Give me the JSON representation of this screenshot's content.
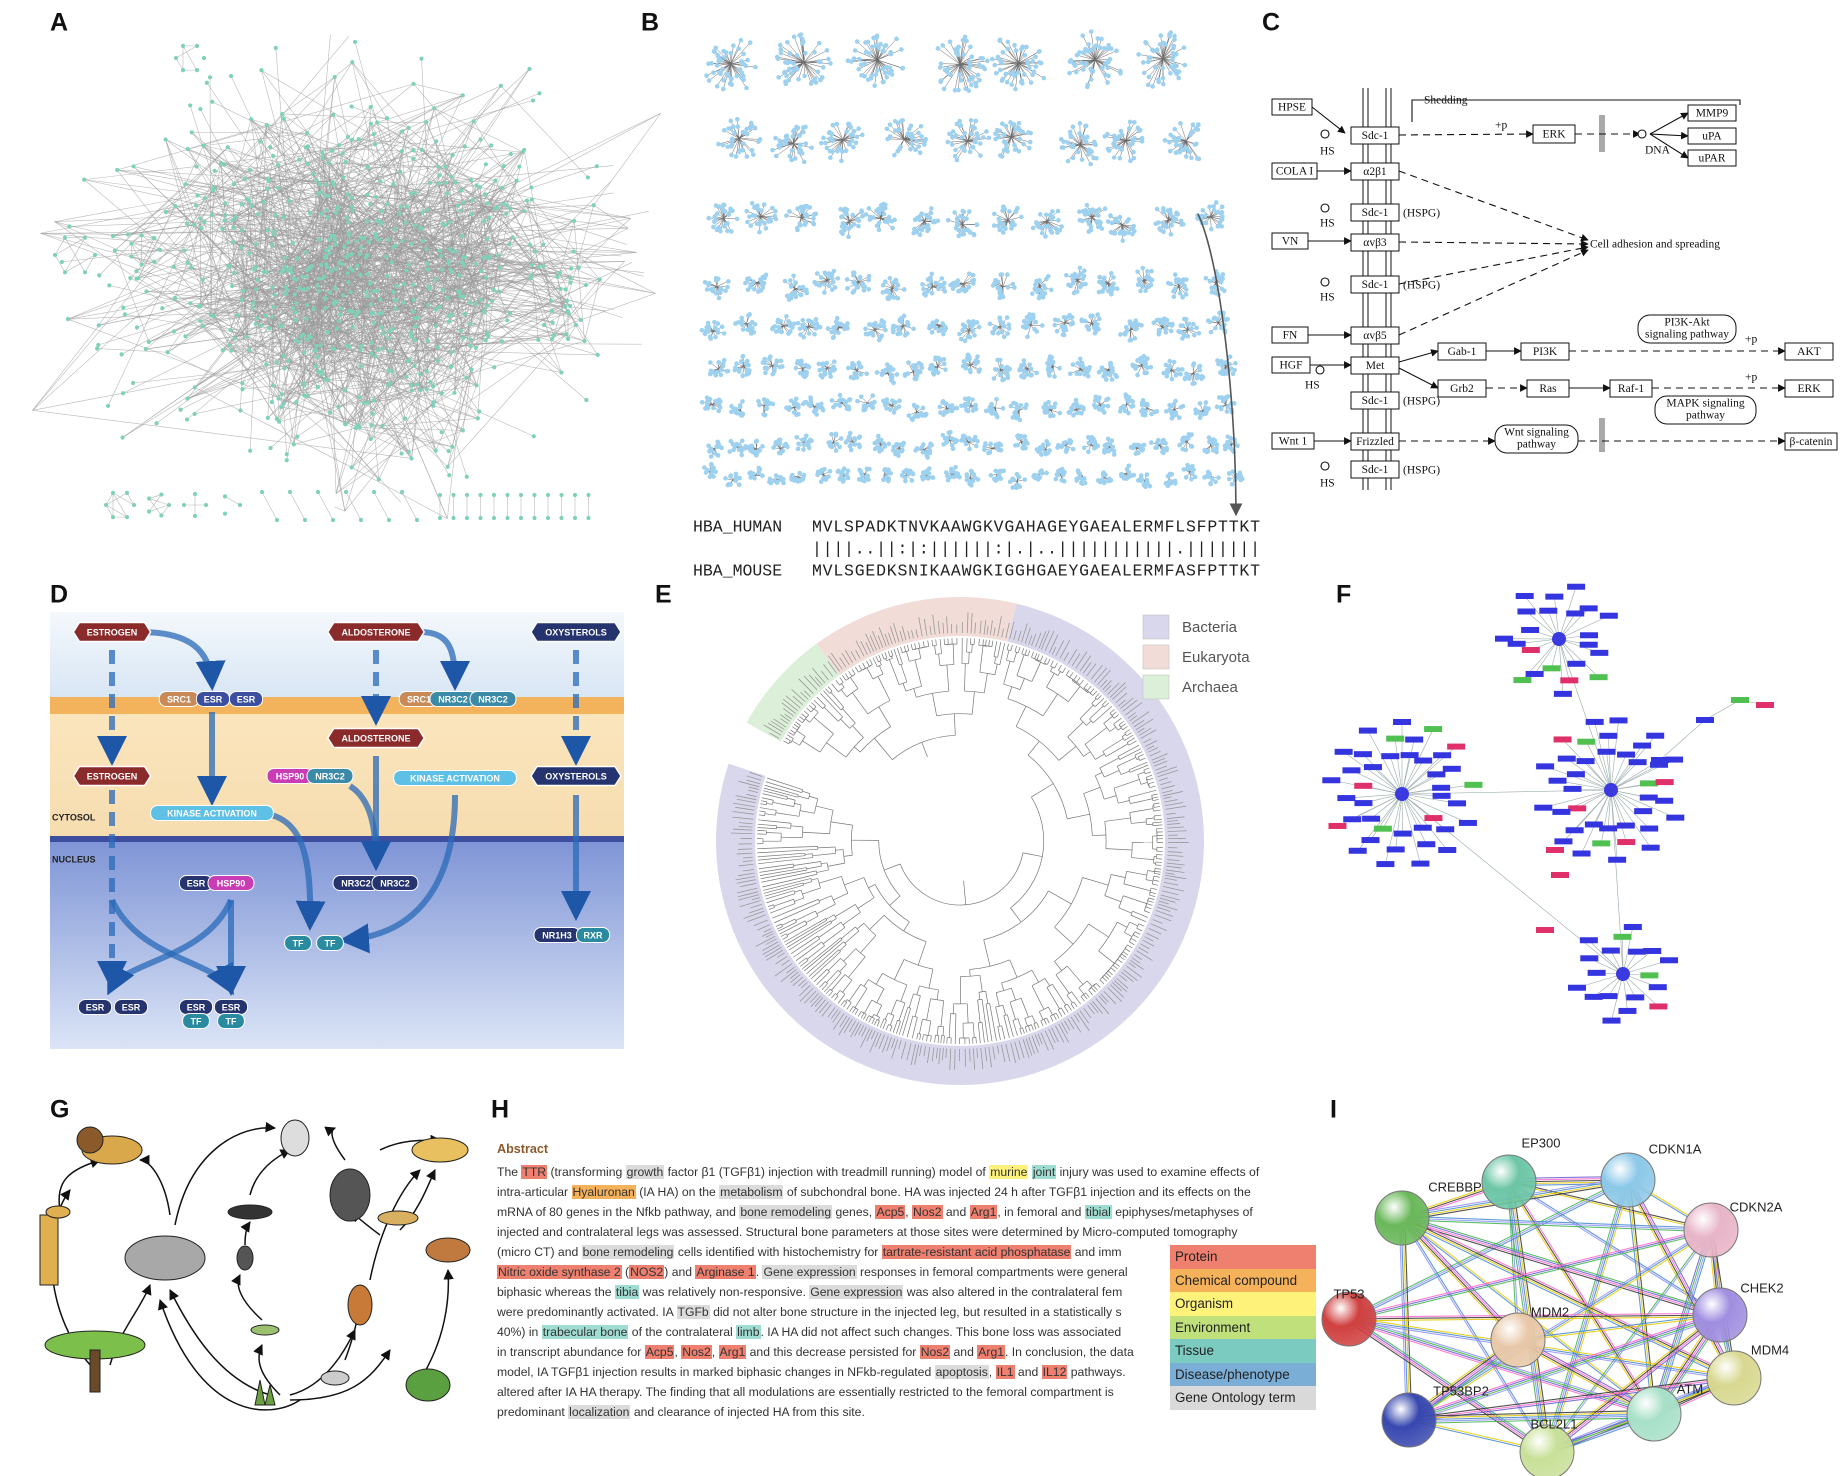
{
  "panel_labels": [
    "A",
    "B",
    "C",
    "D",
    "E",
    "F",
    "G",
    "H",
    "I"
  ],
  "alignment": {
    "name_1": "HBA_HUMAN",
    "sequence_1": "MVLSPADKTNVKAAWGKVGAHAGEYGAEALERMFLSFPTTKT",
    "match": "||||..||:|:||||||:|.|..|||||||||||.|||||||",
    "name_2": "HBA_MOUSE",
    "sequence_2": "MVLSGEDKSNIKAAWGKIGGHGAEYGAEALERMFASFPTTKT"
  },
  "pathway": {
    "boxes": [
      "HPSE",
      "Sdc-1",
      "MMP9",
      "uPA",
      "uPAR",
      "ERK",
      "COLA I",
      "α2β1",
      "Sdc-1",
      "VN",
      "αvβ3",
      "Sdc-1",
      "FN",
      "αvβ5",
      "HGF",
      "Met",
      "Gab-1",
      "PI3K",
      "AKT",
      "Sdc-1",
      "Grb2",
      "Ras",
      "Raf-1",
      "ERK",
      "Wnt 1",
      "Frizzled",
      "β-catenin",
      "Sdc-1"
    ],
    "pathways": [
      [
        "PI3K-Akt",
        "signaling pathway"
      ],
      [
        "MAPK signaling",
        "pathway"
      ],
      [
        "Wnt signaling",
        "pathway"
      ]
    ],
    "notes": [
      "Shedding",
      "+p",
      "DNA",
      "HS",
      "(HSPG)",
      "HS",
      "Cell adhesion and spreading",
      "(HSPG)",
      "HS",
      "+p",
      "+p",
      "HS",
      "(HSPG)",
      "(HSPG)",
      "HS"
    ]
  },
  "receptor_panel": {
    "labels": [
      "ESTROGEN",
      "SRC1",
      "ESR",
      "ESR",
      "ALDOSTERONE",
      "SRC1",
      "NR3C2",
      "NR3C2",
      "OXYSTEROLS",
      "ALDOSTERONE",
      "HSP90",
      "NR3C2",
      "KINASE ACTIVATION",
      "ESTROGEN",
      "OXYSTEROLS",
      "KINASE ACTIVATION",
      "ESR",
      "HSP90",
      "NR3C2",
      "NR3C2",
      "TF",
      "TF",
      "NR1H3",
      "RXR",
      "ESR",
      "ESR",
      "ESR",
      "ESR",
      "TF",
      "TF"
    ],
    "compartments": [
      "CYTOSOL",
      "NUCLEUS"
    ]
  },
  "tree_legend": [
    {
      "label": "Bacteria",
      "color": "#d9d7ec"
    },
    {
      "label": "Eukaryota",
      "color": "#f1dcd8"
    },
    {
      "label": "Archaea",
      "color": "#dcefd8"
    }
  ],
  "abstract": {
    "heading": "Abstract",
    "lines": [
      [
        "The ",
        {
          "text": "TTR",
          "color": "#ef8070"
        },
        " (transforming ",
        {
          "text": "growth",
          "color": "#dcdcdc"
        },
        " factor β1 (TGFβ1) injection with treadmill running) model of ",
        {
          "text": "murine",
          "color": "#fff27a"
        },
        " ",
        {
          "text": "joint",
          "color": "#9fdcd2"
        },
        " injury was used to examine effects of"
      ],
      [
        "intra-articular ",
        {
          "text": "Hyaluronan",
          "color": "#f5b25a"
        },
        " (IA HA) on the ",
        {
          "text": "metabolism",
          "color": "#dcdcdc"
        },
        " of subchondral bone. HA was injected 24 h after TGFβ1 injection and its effects on the"
      ],
      [
        "mRNA of 80 genes in the Nfkb pathway, and ",
        {
          "text": "bone remodeling",
          "color": "#dcdcdc"
        },
        " genes, ",
        {
          "text": "Acp5",
          "color": "#ef8070"
        },
        ", ",
        {
          "text": "Nos2",
          "color": "#ef8070"
        },
        " and ",
        {
          "text": "Arg1",
          "color": "#ef8070"
        },
        ", in femoral and ",
        {
          "text": "tibial",
          "color": "#9fdcd2"
        },
        " epiphyses/metaphyses of"
      ],
      [
        "injected and contralateral legs was assessed. Structural bone parameters at those sites were determined by Micro-computed tomography"
      ],
      [
        "(micro CT) and ",
        {
          "text": "bone remodeling",
          "color": "#dcdcdc"
        },
        " cells identified with histochemistry for ",
        {
          "text": "tartrate-resistant acid phosphatase",
          "color": "#ef8070"
        },
        " and imm"
      ],
      [
        {
          "text": "Nitric oxide synthase 2",
          "color": "#ef8070"
        },
        " (",
        {
          "text": "NOS2",
          "color": "#ef8070"
        },
        ") and ",
        {
          "text": "Arginase 1",
          "color": "#ef8070"
        },
        ". ",
        {
          "text": "Gene expression",
          "color": "#dcdcdc"
        },
        " responses in femoral compartments were general"
      ],
      [
        "biphasic whereas the ",
        {
          "text": "tibia",
          "color": "#9fdcd2"
        },
        " was relatively non-responsive. ",
        {
          "text": "Gene expression",
          "color": "#dcdcdc"
        },
        " was also altered in the contralateral fem"
      ],
      [
        "were predominantly activated. IA ",
        {
          "text": "TGFb",
          "color": "#dcdcdc"
        },
        " did not alter bone structure in the injected leg, but resulted in a statistically s"
      ],
      [
        "40%) in ",
        {
          "text": "trabecular bone",
          "color": "#9fdcd2"
        },
        " of the contralateral ",
        {
          "text": "limb",
          "color": "#9fdcd2"
        },
        ". IA HA did not affect such changes. This bone loss was associated"
      ],
      [
        "in transcript abundance for ",
        {
          "text": "Acp5",
          "color": "#ef8070"
        },
        ", ",
        {
          "text": "Nos2",
          "color": "#ef8070"
        },
        ", ",
        {
          "text": "Arg1",
          "color": "#ef8070"
        },
        " and this decrease persisted for ",
        {
          "text": "Nos2",
          "color": "#ef8070"
        },
        " and ",
        {
          "text": "Arg1",
          "color": "#ef8070"
        },
        ". In conclusion, the data"
      ],
      [
        "model, IA TGFβ1 injection results in marked biphasic changes in NFkb-regulated ",
        {
          "text": "apoptosis",
          "color": "#dcdcdc"
        },
        ", ",
        {
          "text": "IL1",
          "color": "#ef8070"
        },
        " and ",
        {
          "text": "IL12",
          "color": "#ef8070"
        },
        " pathways."
      ],
      [
        "altered after IA HA therapy. The finding that all modulations are essentially restricted to the femoral compartment is"
      ],
      [
        "predominant ",
        {
          "text": "localization",
          "color": "#dcdcdc"
        },
        " and clearance of injected HA from this site."
      ]
    ]
  },
  "entity_legend": [
    {
      "label": "Protein",
      "color": "#ef8070"
    },
    {
      "label": "Chemical compound",
      "color": "#f5b25a"
    },
    {
      "label": "Organism",
      "color": "#fff27a"
    },
    {
      "label": "Environment",
      "color": "#bfe07a"
    },
    {
      "label": "Tissue",
      "color": "#7ccbc0"
    },
    {
      "label": "Disease/phenotype",
      "color": "#7aaed6"
    },
    {
      "label": "Gene Ontology term",
      "color": "#d9d9d9"
    }
  ],
  "string_network": {
    "nodes": [
      {
        "label": "EP300",
        "color": "#6cc6a6"
      },
      {
        "label": "CDKN1A",
        "color": "#8cc8e8"
      },
      {
        "label": "CREBBP",
        "color": "#6ab85a"
      },
      {
        "label": "CDKN2A",
        "color": "#e8b4c8"
      },
      {
        "label": "TP53",
        "color": "#d04040"
      },
      {
        "label": "CHEK2",
        "color": "#a08ee0"
      },
      {
        "label": "MDM2",
        "color": "#e8c8a8"
      },
      {
        "label": "MDM4",
        "color": "#d8d890"
      },
      {
        "label": "TP53BP2",
        "color": "#3848b0"
      },
      {
        "label": "ATM",
        "color": "#a8e0c8"
      },
      {
        "label": "BCL2L1",
        "color": "#c8e098"
      }
    ]
  }
}
